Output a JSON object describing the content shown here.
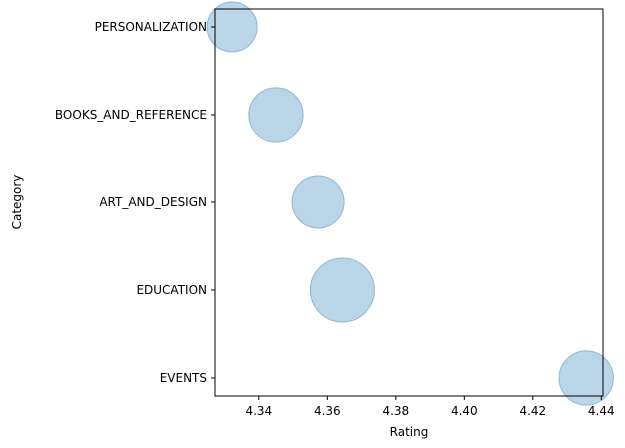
{
  "chart_data": {
    "type": "scatter",
    "title": "",
    "xlabel": "Rating",
    "ylabel": "Category",
    "xlim": [
      4.3272,
      4.4405
    ],
    "xticks": [
      4.34,
      4.36,
      4.38,
      4.4,
      4.42,
      4.44
    ],
    "xtick_labels": [
      "4.34",
      "4.36",
      "4.38",
      "4.40",
      "4.42",
      "4.44"
    ],
    "categories": [
      "PERSONALIZATION",
      "BOOKS_AND_REFERENCE",
      "ART_AND_DESIGN",
      "EDUCATION",
      "EVENTS"
    ],
    "points": [
      {
        "category": "PERSONALIZATION",
        "x": 4.3322,
        "relative_size": 0.61
      },
      {
        "category": "BOOKS_AND_REFERENCE",
        "x": 4.345,
        "relative_size": 0.72
      },
      {
        "category": "ART_AND_DESIGN",
        "x": 4.3573,
        "relative_size": 0.66
      },
      {
        "category": "EDUCATION",
        "x": 4.3644,
        "relative_size": 1.0
      },
      {
        "category": "EVENTS",
        "x": 4.4356,
        "relative_size": 0.72
      }
    ],
    "marker_color": "#a6c8e2",
    "marker_edge_color": "#8fb8d6",
    "grid": false,
    "legend": "none"
  }
}
